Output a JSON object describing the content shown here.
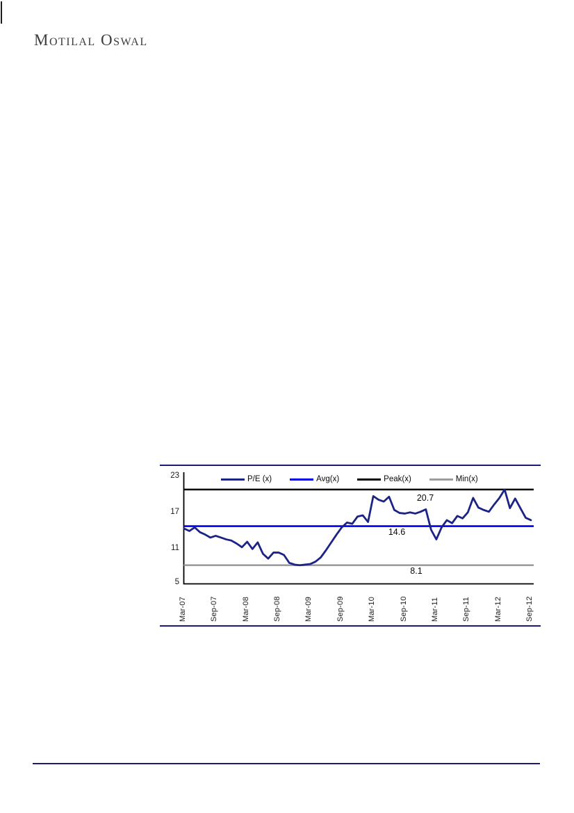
{
  "brand": {
    "name": "Motilal Oswal"
  },
  "chart_data": {
    "type": "line",
    "title": "",
    "x": [
      "Mar-07",
      "Apr-07",
      "May-07",
      "Jun-07",
      "Jul-07",
      "Aug-07",
      "Sep-07",
      "Oct-07",
      "Nov-07",
      "Dec-07",
      "Jan-08",
      "Feb-08",
      "Mar-08",
      "Apr-08",
      "May-08",
      "Jun-08",
      "Jul-08",
      "Aug-08",
      "Sep-08",
      "Oct-08",
      "Nov-08",
      "Dec-08",
      "Jan-09",
      "Feb-09",
      "Mar-09",
      "Apr-09",
      "May-09",
      "Jun-09",
      "Jul-09",
      "Aug-09",
      "Sep-09",
      "Oct-09",
      "Nov-09",
      "Dec-09",
      "Jan-10",
      "Feb-10",
      "Mar-10",
      "Apr-10",
      "May-10",
      "Jun-10",
      "Jul-10",
      "Aug-10",
      "Sep-10",
      "Oct-10",
      "Nov-10",
      "Dec-10",
      "Jan-11",
      "Feb-11",
      "Mar-11",
      "Apr-11",
      "May-11",
      "Jun-11",
      "Jul-11",
      "Aug-11",
      "Sep-11",
      "Oct-11",
      "Nov-11",
      "Dec-11",
      "Jan-12",
      "Feb-12",
      "Mar-12",
      "Apr-12",
      "May-12",
      "Jun-12",
      "Jul-12",
      "Aug-12",
      "Sep-12"
    ],
    "series": [
      {
        "name": "P/E (x)",
        "type": "line",
        "color": "#1b2385",
        "values": [
          14.2,
          13.8,
          14.4,
          13.6,
          13.2,
          12.7,
          13.0,
          12.7,
          12.4,
          12.2,
          11.7,
          11.1,
          12.0,
          10.8,
          11.9,
          10.0,
          9.2,
          10.2,
          10.2,
          9.8,
          8.5,
          8.2,
          8.1,
          8.2,
          8.3,
          8.7,
          9.4,
          10.6,
          11.9,
          13.2,
          14.4,
          15.2,
          15.0,
          16.2,
          16.4,
          15.3,
          19.6,
          19.0,
          18.7,
          19.5,
          17.3,
          16.8,
          16.7,
          16.9,
          16.7,
          17.0,
          17.4,
          14.0,
          12.4,
          14.4,
          15.6,
          15.1,
          16.3,
          15.9,
          16.9,
          19.3,
          17.7,
          17.3,
          17.0,
          18.2,
          19.3,
          20.7,
          17.6,
          19.2,
          17.6,
          16.0,
          15.6
        ]
      },
      {
        "name": "Avg(x)",
        "type": "hline",
        "color": "#0000e6",
        "value": 14.6
      },
      {
        "name": "Peak(x)",
        "type": "hline",
        "color": "#000000",
        "value": 20.7
      },
      {
        "name": "Min(x)",
        "type": "hline",
        "color": "#9d9d9d",
        "value": 8.1
      }
    ],
    "annotations": [
      {
        "text": "20.7"
      },
      {
        "text": "14.6"
      },
      {
        "text": "8.1"
      }
    ],
    "x_tick_labels": [
      "Mar-07",
      "Sep-07",
      "Mar-08",
      "Sep-08",
      "Mar-09",
      "Sep-09",
      "Mar-10",
      "Sep-10",
      "Mar-11",
      "Sep-11",
      "Mar-12",
      "Sep-12"
    ],
    "y_ticks": [
      23,
      17,
      11,
      5
    ],
    "ylim": [
      5,
      23
    ],
    "legend_position": "top-inside",
    "grid": false
  }
}
